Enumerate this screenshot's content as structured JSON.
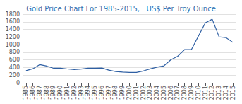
{
  "chart_data": {
    "type": "line",
    "title": "Gold Price Chart For 1985-2015,   US$ Per Troy Ounce",
    "x": [
      1985,
      1986,
      1987,
      1988,
      1989,
      1990,
      1991,
      1992,
      1993,
      1994,
      1995,
      1996,
      1997,
      1998,
      1999,
      2000,
      2001,
      2002,
      2003,
      2004,
      2005,
      2006,
      2007,
      2008,
      2009,
      2010,
      2011,
      2012,
      2013,
      2014,
      2015
    ],
    "values": [
      317,
      368,
      477,
      437,
      381,
      383,
      362,
      344,
      360,
      384,
      384,
      388,
      331,
      294,
      279,
      273,
      271,
      310,
      364,
      410,
      444,
      604,
      695,
      872,
      875,
      1224,
      1571,
      1668,
      1204,
      1183,
      1060
    ],
    "color": "#2E5FA3",
    "xlim": [
      1984.5,
      2015.5
    ],
    "xticks": [
      1985,
      1986,
      1987,
      1988,
      1989,
      1990,
      1991,
      1992,
      1993,
      1994,
      1995,
      1996,
      1997,
      1998,
      1999,
      2000,
      2001,
      2002,
      2003,
      2004,
      2005,
      2006,
      2007,
      2008,
      2009,
      2010,
      2011,
      2012,
      2013,
      2014,
      2015
    ],
    "ylim": [
      0,
      1800
    ],
    "yticks": [
      0,
      200,
      400,
      600,
      800,
      1000,
      1200,
      1400,
      1600,
      1800
    ],
    "grid": true
  }
}
